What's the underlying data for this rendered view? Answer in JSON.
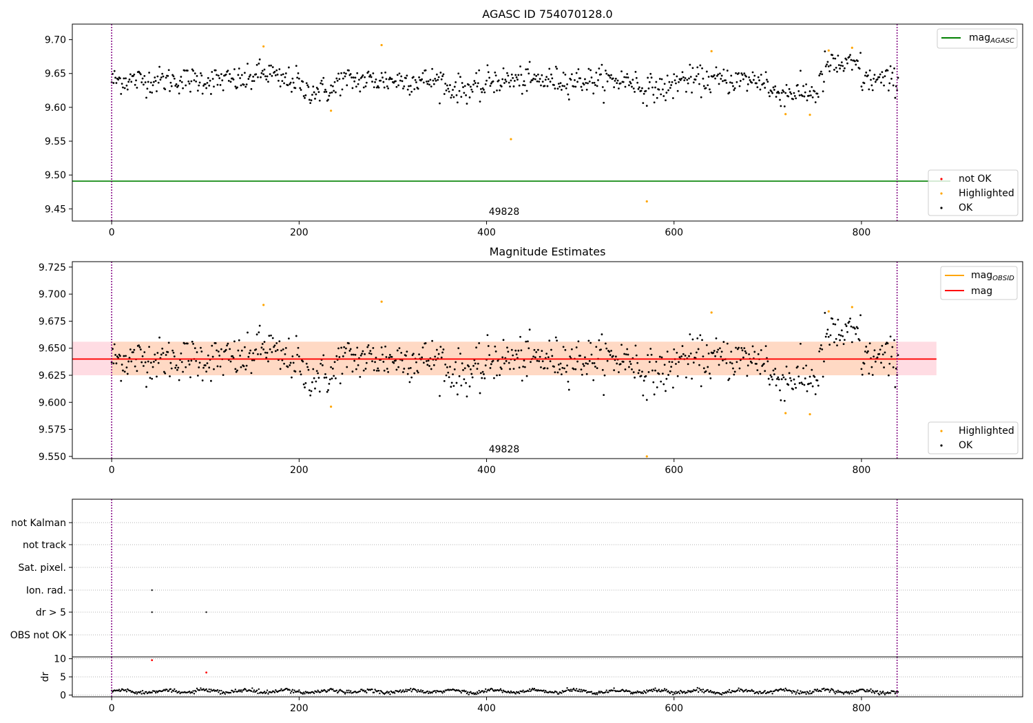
{
  "figure": {
    "background": "#ffffff",
    "colors": {
      "ok": "#000000",
      "highlighted": "#ffa500",
      "not_ok": "#ff0000",
      "mag_agasc_line": "#008000",
      "mag_line": "#ff0000",
      "mag_obsid_legend": "#ffa500",
      "band_outer": "#ffdce3",
      "band_inner": "#ffd9c4",
      "obs_boundary": "#800080",
      "grid": "#b0b0b0"
    }
  },
  "chart_data": [
    {
      "id": "agasc",
      "type": "scatter",
      "title": "AGASC ID 754070128.0",
      "xlim": [
        -42,
        972
      ],
      "ylim": [
        9.432,
        9.723
      ],
      "xticks": [
        0,
        200,
        400,
        600,
        800
      ],
      "yticks": [
        9.45,
        9.5,
        9.55,
        9.6,
        9.65,
        9.7
      ],
      "ytick_labels": [
        "9.45",
        "9.50",
        "9.55",
        "9.60",
        "9.65",
        "9.70"
      ],
      "obs_boundaries": [
        0,
        838
      ],
      "obs_label": {
        "text": "49828",
        "x": 419
      },
      "mag_agasc": 9.491,
      "series_ok_baseline": 9.64,
      "ok_count": 840,
      "ok_noise": 0.014,
      "highlighted": [
        [
          162,
          9.69
        ],
        [
          234,
          9.595
        ],
        [
          288,
          9.692
        ],
        [
          426,
          9.553
        ],
        [
          571,
          9.461
        ],
        [
          640,
          9.683
        ],
        [
          719,
          9.59
        ],
        [
          745,
          9.589
        ],
        [
          765,
          9.684
        ],
        [
          790,
          9.688
        ]
      ],
      "legend_top": [
        {
          "label": "mag",
          "sub": "AGASC",
          "kind": "line",
          "color": "#008000"
        }
      ],
      "legend_bottom": [
        {
          "label": "not OK",
          "kind": "dot",
          "color": "#ff0000"
        },
        {
          "label": "Highlighted",
          "kind": "dot",
          "color": "#ffa500"
        },
        {
          "label": "OK",
          "kind": "dot",
          "color": "#000000"
        }
      ],
      "legend_placement": {
        "top": "upper right",
        "bottom": "lower right"
      }
    },
    {
      "id": "estimates",
      "type": "scatter",
      "title": "Magnitude Estimates",
      "xlim": [
        -42,
        972
      ],
      "ylim": [
        9.548,
        9.73
      ],
      "xticks": [
        0,
        200,
        400,
        600,
        800
      ],
      "yticks": [
        9.55,
        9.575,
        9.6,
        9.625,
        9.65,
        9.675,
        9.7,
        9.725
      ],
      "ytick_labels": [
        "9.550",
        "9.575",
        "9.600",
        "9.625",
        "9.650",
        "9.675",
        "9.700",
        "9.725"
      ],
      "obs_boundaries": [
        0,
        838
      ],
      "obs_label": {
        "text": "49828",
        "x": 419
      },
      "mag": 9.64,
      "mag_band": [
        9.625,
        9.656
      ],
      "band_x": [
        -42,
        880
      ],
      "highlighted": [
        [
          162,
          9.69
        ],
        [
          234,
          9.596
        ],
        [
          288,
          9.693
        ],
        [
          571,
          9.55
        ],
        [
          640,
          9.683
        ],
        [
          719,
          9.59
        ],
        [
          745,
          9.589
        ],
        [
          765,
          9.684
        ],
        [
          790,
          9.688
        ]
      ],
      "legend_top": [
        {
          "label": "mag",
          "sub": "OBSID",
          "kind": "line",
          "color": "#ffa500"
        },
        {
          "label": "mag",
          "kind": "line",
          "color": "#ff0000"
        }
      ],
      "legend_bottom": [
        {
          "label": "Highlighted",
          "kind": "dot",
          "color": "#ffa500"
        },
        {
          "label": "OK",
          "kind": "dot",
          "color": "#000000"
        }
      ],
      "legend_placement": {
        "top": "upper right",
        "bottom": "lower right"
      }
    },
    {
      "id": "flags",
      "type": "scatter",
      "xlim": [
        -42,
        972
      ],
      "xticks": [
        0,
        200,
        400,
        600,
        800
      ],
      "obs_boundaries": [
        0,
        838
      ],
      "flag_labels": [
        "not Kalman",
        "not track",
        "Sat. pixel.",
        "Ion. rad.",
        "dr > 5",
        "OBS not OK"
      ],
      "flag_points": [
        {
          "flag": "Ion. rad.",
          "x": 43
        },
        {
          "flag": "dr > 5",
          "x": 43
        },
        {
          "flag": "dr > 5",
          "x": 101
        }
      ],
      "grid": "horizontal dotted"
    },
    {
      "id": "dr",
      "type": "scatter",
      "ylabel": "dr",
      "xlim": [
        -42,
        972
      ],
      "ylim": [
        -0.5,
        10.5
      ],
      "xticks": [
        0,
        200,
        400,
        600,
        800
      ],
      "yticks": [
        0,
        5,
        10
      ],
      "ytick_labels": [
        "0",
        "5",
        "10"
      ],
      "obs_boundaries": [
        0,
        838
      ],
      "dr_ok_mean": 1.0,
      "dr_not_ok": [
        [
          43,
          9.6
        ],
        [
          101,
          6.2
        ]
      ],
      "grid": "horizontal dotted"
    }
  ]
}
